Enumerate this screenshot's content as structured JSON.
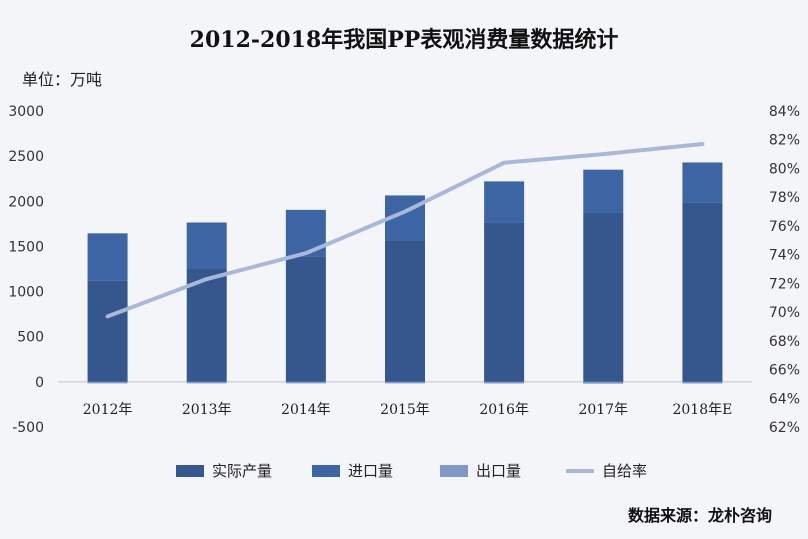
{
  "chart_data": {
    "type": "bar",
    "title": "2012-2018年我国PP表观消费量数据统计",
    "unit_label": "单位：万吨",
    "source": "数据来源：龙朴咨询",
    "categories": [
      "2012年",
      "2013年",
      "2014年",
      "2015年",
      "2016年",
      "2017年",
      "2018年E"
    ],
    "series": [
      {
        "name": "实际产量",
        "type": "bar",
        "axis": "left",
        "color": "#35578e",
        "values": [
          1125,
          1255,
          1390,
          1570,
          1760,
          1870,
          1990
        ]
      },
      {
        "name": "进口量",
        "type": "bar",
        "axis": "left",
        "color": "#3d65a4",
        "values": [
          520,
          510,
          515,
          495,
          460,
          480,
          440
        ]
      },
      {
        "name": "出口量",
        "type": "bar",
        "axis": "left",
        "color": "#7f98c8",
        "values": [
          -12,
          -13,
          -14,
          -15,
          -18,
          -20,
          -18
        ]
      },
      {
        "name": "自给率",
        "type": "line",
        "axis": "right",
        "color": "#a9b8da",
        "values": [
          69.7,
          72.3,
          74.1,
          77.0,
          80.4,
          81.0,
          81.7
        ]
      }
    ],
    "y_left": {
      "min": -500,
      "max": 3000,
      "step": 500,
      "ticks": [
        "-500",
        "0",
        "500",
        "1000",
        "1500",
        "2000",
        "2500",
        "3000"
      ]
    },
    "y_right": {
      "min": 62,
      "max": 84,
      "step": 2,
      "ticks": [
        "62%",
        "64%",
        "66%",
        "68%",
        "70%",
        "72%",
        "74%",
        "76%",
        "78%",
        "80%",
        "82%",
        "84%"
      ]
    },
    "grid": false,
    "legend_position": "bottom"
  }
}
